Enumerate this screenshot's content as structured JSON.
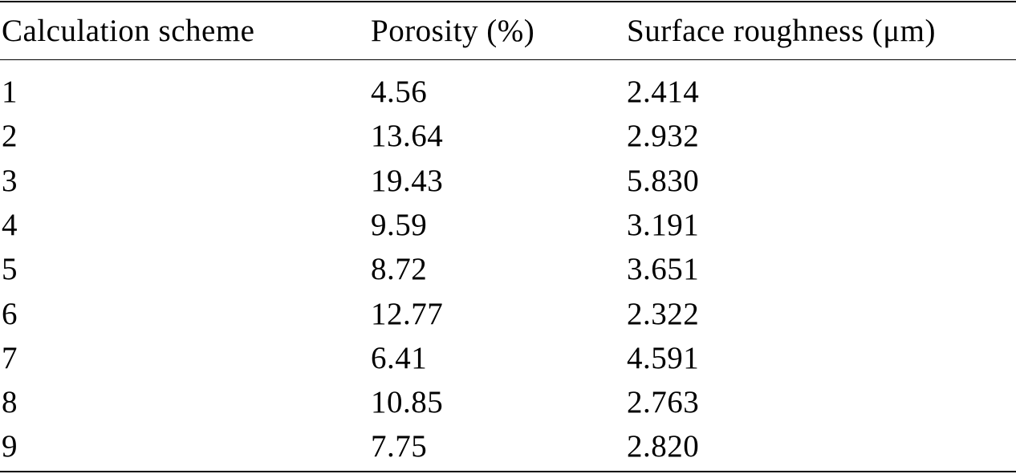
{
  "table": {
    "columns": [
      "Calculation scheme",
      "Porosity (%)",
      "Surface roughness (μm)"
    ],
    "rows": [
      [
        "1",
        "4.56",
        "2.414"
      ],
      [
        "2",
        "13.64",
        "2.932"
      ],
      [
        "3",
        "19.43",
        "5.830"
      ],
      [
        "4",
        "9.59",
        "3.191"
      ],
      [
        "5",
        "8.72",
        "3.651"
      ],
      [
        "6",
        "12.77",
        "2.322"
      ],
      [
        "7",
        "6.41",
        "4.591"
      ],
      [
        "8",
        "10.85",
        "2.763"
      ],
      [
        "9",
        "7.75",
        "2.820"
      ]
    ]
  }
}
